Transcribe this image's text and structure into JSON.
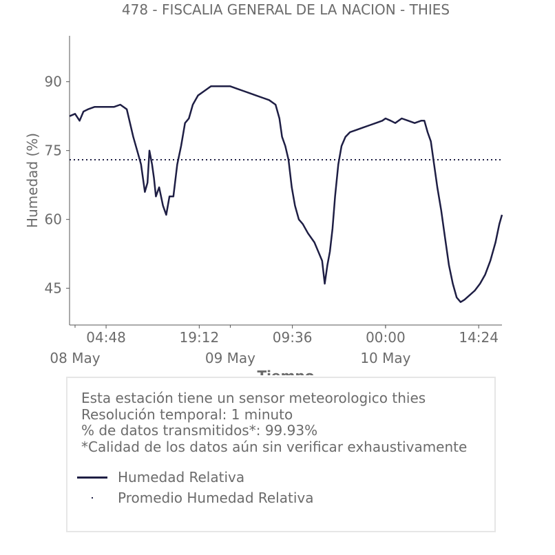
{
  "chart_data": {
    "type": "line",
    "title": "478 - FISCALIA GENERAL DE LA NACION - THIES",
    "xlabel": "Tiempo",
    "ylabel": "Humedad (%)",
    "x_unit": "hours since 08 May 00:00",
    "xlim": [
      -0.85,
      66.0
    ],
    "ylim": [
      37.0,
      100.0
    ],
    "y_ticks": [
      45,
      60,
      75,
      90
    ],
    "x_ticks": [
      {
        "x": 4.8,
        "label": "04:48"
      },
      {
        "x": 19.2,
        "label": "19:12"
      },
      {
        "x": 33.6,
        "label": "09:36"
      },
      {
        "x": 48.0,
        "label": "00:00"
      },
      {
        "x": 62.4,
        "label": "14:24"
      }
    ],
    "x_major_ticks": [
      {
        "x": 0,
        "label": "08 May"
      },
      {
        "x": 24,
        "label": "09 May"
      },
      {
        "x": 48,
        "label": "10 May"
      }
    ],
    "grid": false,
    "series": [
      {
        "name": "Humedad Relativa",
        "color": "#1e1e44",
        "style": "solid",
        "points": [
          [
            -0.85,
            82.5
          ],
          [
            0.0,
            83.0
          ],
          [
            0.7,
            81.5
          ],
          [
            1.3,
            83.5
          ],
          [
            2.0,
            84.0
          ],
          [
            3.0,
            84.5
          ],
          [
            4.0,
            84.5
          ],
          [
            5.0,
            84.5
          ],
          [
            6.0,
            84.5
          ],
          [
            7.0,
            85.0
          ],
          [
            8.0,
            84.0
          ],
          [
            9.0,
            78.0
          ],
          [
            9.6,
            75.0
          ],
          [
            10.2,
            72.0
          ],
          [
            10.8,
            66.0
          ],
          [
            11.2,
            68.0
          ],
          [
            11.5,
            75.0
          ],
          [
            11.9,
            72.0
          ],
          [
            12.2,
            69.0
          ],
          [
            12.5,
            65.0
          ],
          [
            13.0,
            67.0
          ],
          [
            13.6,
            63.0
          ],
          [
            14.1,
            61.0
          ],
          [
            14.6,
            65.0
          ],
          [
            15.2,
            65.0
          ],
          [
            15.8,
            72.0
          ],
          [
            16.4,
            76.0
          ],
          [
            17.0,
            81.0
          ],
          [
            17.6,
            82.0
          ],
          [
            18.2,
            85.0
          ],
          [
            19.0,
            87.0
          ],
          [
            20.0,
            88.0
          ],
          [
            21.0,
            89.0
          ],
          [
            22.0,
            89.0
          ],
          [
            23.0,
            89.0
          ],
          [
            24.0,
            89.0
          ],
          [
            25.0,
            88.5
          ],
          [
            26.0,
            88.0
          ],
          [
            27.0,
            87.5
          ],
          [
            28.0,
            87.0
          ],
          [
            29.0,
            86.5
          ],
          [
            30.0,
            86.0
          ],
          [
            31.0,
            85.0
          ],
          [
            31.6,
            82.0
          ],
          [
            32.0,
            78.0
          ],
          [
            32.5,
            76.0
          ],
          [
            33.0,
            73.0
          ],
          [
            33.5,
            67.0
          ],
          [
            34.0,
            63.0
          ],
          [
            34.6,
            60.0
          ],
          [
            35.2,
            59.0
          ],
          [
            36.0,
            57.0
          ],
          [
            37.0,
            55.0
          ],
          [
            37.6,
            53.0
          ],
          [
            38.2,
            51.0
          ],
          [
            38.6,
            46.0
          ],
          [
            39.0,
            50.0
          ],
          [
            39.4,
            53.0
          ],
          [
            39.8,
            58.0
          ],
          [
            40.2,
            65.0
          ],
          [
            40.7,
            72.0
          ],
          [
            41.2,
            76.0
          ],
          [
            41.8,
            78.0
          ],
          [
            42.5,
            79.0
          ],
          [
            43.5,
            79.5
          ],
          [
            44.5,
            80.0
          ],
          [
            45.5,
            80.5
          ],
          [
            46.5,
            81.0
          ],
          [
            47.5,
            81.5
          ],
          [
            48.0,
            82.0
          ],
          [
            48.8,
            81.5
          ],
          [
            49.5,
            81.0
          ],
          [
            50.5,
            82.0
          ],
          [
            51.5,
            81.5
          ],
          [
            52.5,
            81.0
          ],
          [
            53.5,
            81.5
          ],
          [
            54.0,
            81.5
          ],
          [
            54.5,
            79.0
          ],
          [
            55.0,
            77.0
          ],
          [
            55.5,
            72.0
          ],
          [
            56.0,
            67.0
          ],
          [
            56.6,
            62.0
          ],
          [
            57.2,
            56.0
          ],
          [
            57.8,
            50.0
          ],
          [
            58.4,
            46.0
          ],
          [
            59.0,
            43.0
          ],
          [
            59.6,
            42.0
          ],
          [
            60.2,
            42.5
          ],
          [
            61.0,
            43.5
          ],
          [
            61.8,
            44.5
          ],
          [
            62.6,
            46.0
          ],
          [
            63.4,
            48.0
          ],
          [
            64.2,
            51.0
          ],
          [
            65.0,
            55.0
          ],
          [
            65.6,
            59.0
          ],
          [
            66.0,
            61.0
          ]
        ]
      },
      {
        "name": "Promedio Humedad Relativa",
        "color": "#1e1e44",
        "style": "dotted",
        "value": 73.0
      }
    ]
  },
  "info": {
    "line1": "Esta estación tiene un sensor meteorologico thies",
    "line2": "Resolución temporal: 1 minuto",
    "line3": "% de datos transmitidos*: 99.93%",
    "line4": "*Calidad de los datos aún sin verificar exhaustivamente"
  }
}
